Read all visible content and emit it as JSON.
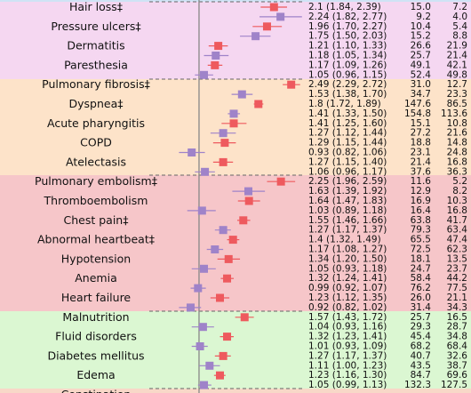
{
  "chart_data": {
    "type": "forest",
    "log_x": true,
    "xlim": [
      0.55,
      2.9
    ],
    "reference_line": 1,
    "marker_colors": [
      "#ee5a5e",
      "#9f83c9"
    ],
    "categories": [
      "Hair loss‡",
      null,
      "Pressure ulcers‡",
      null,
      "Dermatitis",
      null,
      "Paresthesia",
      null,
      "Pulmonary fibrosis‡",
      null,
      "Dyspnea‡",
      null,
      "Acute pharyngitis",
      null,
      "COPD",
      null,
      "Atelectasis",
      null,
      "Pulmonary embolism‡",
      null,
      "Thromboembolism",
      null,
      "Chest pain‡",
      null,
      "Abnormal heartbeat‡",
      null,
      "Hypotension",
      null,
      "Anemia",
      null,
      "Heart failure",
      null,
      "Malnutrition",
      null,
      "Fluid disorders",
      null,
      "Diabetes mellitus",
      null,
      "Edema",
      null,
      "Constipation"
    ],
    "values": [
      2.1,
      2.24,
      1.96,
      1.75,
      1.21,
      1.18,
      1.17,
      1.05,
      2.49,
      1.53,
      1.8,
      1.41,
      1.41,
      1.27,
      1.29,
      0.93,
      1.27,
      1.06,
      2.25,
      1.63,
      1.64,
      1.03,
      1.55,
      1.27,
      1.4,
      1.17,
      1.34,
      1.05,
      1.32,
      0.99,
      1.23,
      0.92,
      1.57,
      1.04,
      1.32,
      1.01,
      1.27,
      1.11,
      1.23,
      1.05,
      null
    ],
    "ci_lower": [
      1.84,
      1.82,
      1.7,
      1.5,
      1.1,
      1.05,
      1.09,
      0.96,
      2.29,
      1.38,
      1.72,
      1.33,
      1.25,
      1.12,
      1.15,
      0.82,
      1.15,
      0.96,
      1.96,
      1.39,
      1.47,
      0.89,
      1.46,
      1.17,
      1.32,
      1.08,
      1.2,
      0.93,
      1.24,
      0.92,
      1.12,
      0.82,
      1.43,
      0.93,
      1.23,
      0.93,
      1.17,
      1.0,
      1.16,
      0.99,
      null
    ],
    "ci_upper": [
      2.39,
      2.77,
      2.27,
      2.03,
      1.33,
      1.34,
      1.26,
      1.15,
      2.72,
      1.7,
      1.89,
      1.5,
      1.6,
      1.44,
      1.44,
      1.06,
      1.4,
      1.17,
      2.59,
      1.92,
      1.83,
      1.18,
      1.66,
      1.37,
      1.49,
      1.27,
      1.5,
      1.18,
      1.41,
      1.07,
      1.35,
      1.02,
      1.72,
      1.16,
      1.41,
      1.09,
      1.37,
      1.23,
      1.3,
      1.13,
      null
    ],
    "value_labels": [
      "2.1 (1.84, 2.39)",
      "2.24 (1.82, 2.77)",
      "1.96 (1.70, 2.27)",
      "1.75 (1.50, 2.03)",
      "1.21 (1.10, 1.33)",
      "1.18 (1.05, 1.34)",
      "1.17 (1.09, 1.26)",
      "1.05 (0.96, 1.15)",
      "2.49 (2.29, 2.72)",
      "1.53 (1.38, 1.70)",
      "1.8 (1.72, 1.89)",
      "1.41 (1.33, 1.50)",
      "1.41 (1.25, 1.60)",
      "1.27 (1.12, 1.44)",
      "1.29 (1.15, 1.44)",
      "0.93 (0.82, 1.06)",
      "1.27 (1.15, 1.40)",
      "1.06 (0.96, 1.17)",
      "2.25 (1.96, 2.59)",
      "1.63 (1.39, 1.92)",
      "1.64 (1.47, 1.83)",
      "1.03 (0.89, 1.18)",
      "1.55 (1.46, 1.66)",
      "1.27 (1.17, 1.37)",
      "1.4 (1.32, 1.49)",
      "1.17 (1.08, 1.27)",
      "1.34 (1.20, 1.50)",
      "1.05 (0.93, 1.18)",
      "1.32 (1.24, 1.41)",
      "0.99 (0.92, 1.07)",
      "1.23 (1.12, 1.35)",
      "0.92 (0.82, 1.02)",
      "1.57 (1.43, 1.72)",
      "1.04 (0.93, 1.16)",
      "1.32 (1.23, 1.41)",
      "1.01 (0.93, 1.09)",
      "1.27 (1.17, 1.37)",
      "1.11 (1.00, 1.23)",
      "1.23 (1.16, 1.30)",
      "1.05 (0.99, 1.13)",
      null
    ],
    "col1": [
      "15.0",
      "9.2",
      "10.4",
      "15.2",
      "26.6",
      "25.7",
      "49.1",
      "52.4",
      "31.0",
      "34.7",
      "147.6",
      "154.8",
      "15.1",
      "27.2",
      "18.8",
      "23.1",
      "21.4",
      "37.6",
      "11.6",
      "12.9",
      "16.9",
      "16.4",
      "63.8",
      "79.3",
      "65.5",
      "72.5",
      "18.1",
      "24.7",
      "58.4",
      "76.2",
      "26.0",
      "31.4",
      "25.7",
      "29.3",
      "45.4",
      "68.2",
      "40.7",
      "43.5",
      "84.7",
      "132.3",
      null
    ],
    "col2": [
      "7.2",
      "4.0",
      "5.4",
      "8.8",
      "21.9",
      "21.4",
      "42.1",
      "49.8",
      "12.7",
      "23.3",
      "86.5",
      "113.6",
      "10.8",
      "21.6",
      "14.8",
      "24.8",
      "16.8",
      "36.3",
      "5.2",
      "8.2",
      "10.3",
      "16.8",
      "41.7",
      "63.4",
      "47.4",
      "62.3",
      "13.5",
      "23.7",
      "44.2",
      "77.5",
      "21.1",
      "34.3",
      "16.5",
      "28.7",
      "34.8",
      "68.4",
      "32.6",
      "38.7",
      "69.6",
      "127.5",
      null
    ]
  }
}
